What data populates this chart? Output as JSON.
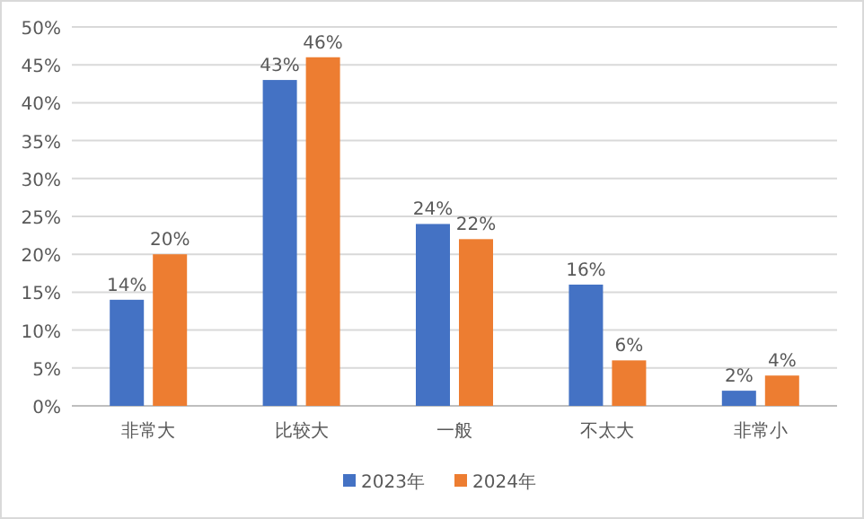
{
  "chart_data": {
    "type": "bar",
    "categories": [
      "非常大",
      "比较大",
      "一般",
      "不太大",
      "非常小"
    ],
    "series": [
      {
        "name": "2023年",
        "color": "#4472c4",
        "values": [
          14,
          43,
          24,
          16,
          2
        ],
        "value_labels": [
          "14%",
          "43%",
          "24%",
          "16%",
          "2%"
        ]
      },
      {
        "name": "2024年",
        "color": "#ed7d31",
        "values": [
          20,
          46,
          22,
          6,
          4
        ],
        "value_labels": [
          "20%",
          "46%",
          "22%",
          "6%",
          "4%"
        ]
      }
    ],
    "ylim": [
      0,
      50
    ],
    "yticks": [
      {
        "value": 0,
        "label": "0%"
      },
      {
        "value": 5,
        "label": "5%"
      },
      {
        "value": 10,
        "label": "10%"
      },
      {
        "value": 15,
        "label": "15%"
      },
      {
        "value": 20,
        "label": "20%"
      },
      {
        "value": 25,
        "label": "25%"
      },
      {
        "value": 30,
        "label": "30%"
      },
      {
        "value": 35,
        "label": "35%"
      },
      {
        "value": 40,
        "label": "40%"
      },
      {
        "value": 45,
        "label": "45%"
      },
      {
        "value": 50,
        "label": "50%"
      }
    ],
    "grid": "y",
    "legend": "bottom"
  }
}
